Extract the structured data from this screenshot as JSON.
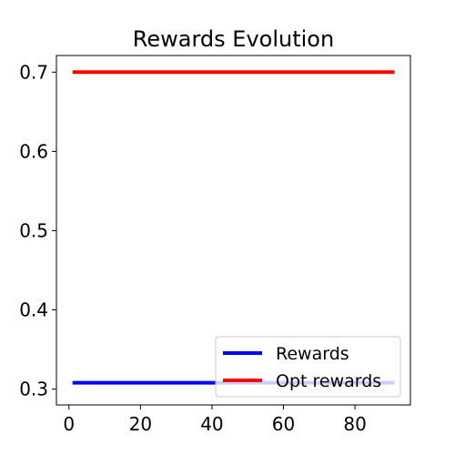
{
  "chart_data": {
    "type": "line",
    "title": "Rewards Evolution",
    "xlabel": "",
    "ylabel": "",
    "xlim": [
      -3.5,
      95.5
    ],
    "ylim": [
      0.28,
      0.721
    ],
    "x_ticks": [
      0,
      20,
      40,
      60,
      80
    ],
    "y_ticks": [
      0.3,
      0.4,
      0.5,
      0.6,
      0.7
    ],
    "x_tick_labels": [
      "0",
      "20",
      "40",
      "60",
      "80"
    ],
    "y_tick_labels": [
      "0.3",
      "0.4",
      "0.5",
      "0.6",
      "0.7"
    ],
    "grid": false,
    "legend_position": "lower-right",
    "series": [
      {
        "name": "Rewards",
        "color": "#0000ff",
        "x": [
          1,
          91
        ],
        "y": [
          0.308,
          0.308
        ]
      },
      {
        "name": "Opt rewards",
        "color": "#ff0000",
        "x": [
          1,
          91
        ],
        "y": [
          0.7,
          0.7
        ]
      }
    ]
  }
}
